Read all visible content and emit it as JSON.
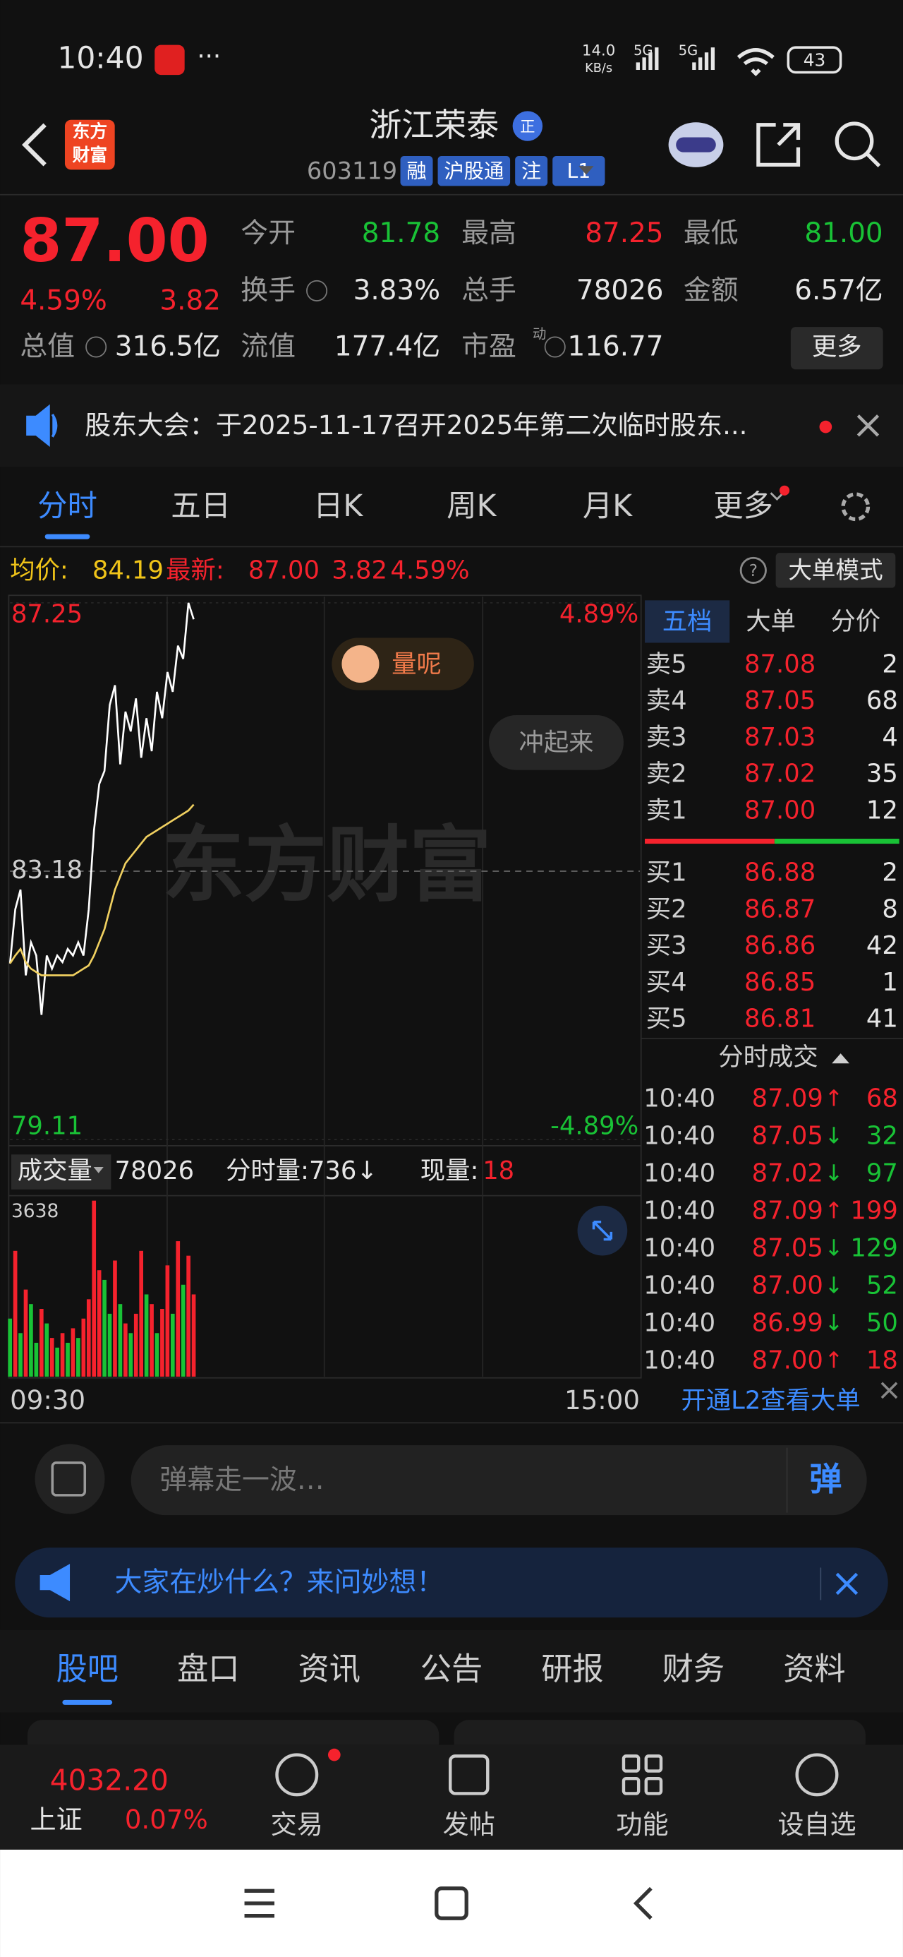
{
  "status_bar": {
    "time": "10:40",
    "speed": "14.0",
    "speed_unit": "KB/s",
    "net1": "5G",
    "net2": "5G",
    "battery": "43"
  },
  "header": {
    "logo": [
      "东方",
      "财富"
    ],
    "name": "浙江荣泰",
    "badge": "正",
    "code": "603119",
    "tags": [
      "融",
      "沪股通",
      "注",
      "L1"
    ]
  },
  "quote": {
    "price": "87.00",
    "change_pct": "4.59%",
    "change": "3.82",
    "fields": [
      {
        "label": "今开",
        "value": "81.78"
      },
      {
        "label": "最高",
        "value": "87.25"
      },
      {
        "label": "最低",
        "value": "81.00"
      },
      {
        "label": "换手",
        "value": "3.83%"
      },
      {
        "label": "总手",
        "value": "78026"
      },
      {
        "label": "金额",
        "value": "6.57亿"
      },
      {
        "label": "总值",
        "value": "316.5亿"
      },
      {
        "label": "流值",
        "value": "177.4亿"
      },
      {
        "label": "市盈",
        "sup": "动",
        "value": "116.77"
      }
    ],
    "more": "更多"
  },
  "notice": "股东大会：于2025-11-17召开2025年第二次临时股东...",
  "tabs": [
    "分时",
    "五日",
    "日K",
    "周K",
    "月K",
    "更多"
  ],
  "chart_header": {
    "avg_label": "均价:",
    "avg": "84.19",
    "latest_label": "最新:",
    "latest": "87.00",
    "change": "3.82",
    "pct": "4.59%",
    "mode": "大单模式"
  },
  "overlays": {
    "watermark": "东方财富",
    "bubble": "量呢",
    "cheer": "冲起来"
  },
  "intraday": {
    "type": "line",
    "xlim": [
      0,
      240
    ],
    "xticks": [
      {
        "value": 0,
        "label": "09:30"
      },
      {
        "value": 240,
        "label": "15:00"
      }
    ],
    "ylim": [
      79.11,
      87.25
    ],
    "yticks": [
      87.25,
      83.18,
      79.11
    ],
    "y2lim": [
      -4.89,
      4.89
    ],
    "y2ticks": [
      {
        "value": 4.89,
        "label": "4.89%"
      },
      {
        "value": -4.89,
        "label": "-4.89%"
      }
    ],
    "x": [
      0,
      2,
      4,
      6,
      8,
      10,
      12,
      14,
      16,
      18,
      20,
      22,
      24,
      26,
      28,
      30,
      32,
      34,
      36,
      38,
      40,
      42,
      44,
      46,
      48,
      50,
      52,
      54,
      56,
      58,
      60,
      62,
      64,
      66,
      68,
      70
    ],
    "series": [
      {
        "color": "#ffffff",
        "values": [
          81.78,
          82.6,
          82.9,
          81.6,
          82.1,
          81.9,
          81.0,
          81.9,
          81.7,
          81.9,
          81.8,
          82.0,
          81.9,
          82.1,
          81.9,
          82.6,
          83.8,
          84.5,
          84.7,
          85.7,
          86.0,
          84.8,
          85.6,
          85.3,
          85.8,
          84.9,
          85.5,
          85.0,
          85.9,
          85.5,
          86.2,
          85.9,
          86.6,
          86.4,
          87.25,
          87.0
        ]
      },
      {
        "color": "#f0d060",
        "values": [
          81.78,
          81.9,
          82.0,
          81.8,
          81.7,
          81.65,
          81.6,
          81.6,
          81.6,
          81.6,
          81.6,
          81.6,
          81.6,
          81.65,
          81.7,
          81.75,
          81.9,
          82.1,
          82.3,
          82.6,
          82.9,
          83.1,
          83.3,
          83.4,
          83.5,
          83.6,
          83.7,
          83.75,
          83.8,
          83.85,
          83.9,
          83.95,
          84.0,
          84.05,
          84.1,
          84.19
        ]
      }
    ]
  },
  "volume": {
    "type": "bar",
    "label": "成交量",
    "total": "78026",
    "minute_vol": "分时量:736↓",
    "now_label": "现量:",
    "now": "18",
    "ylim": [
      0,
      3638
    ],
    "yticks": [
      3638
    ],
    "values": [
      1200,
      2600,
      900,
      1800,
      1500,
      700,
      1400,
      1100,
      800,
      600,
      900,
      700,
      1000,
      800,
      1200,
      1600,
      3638,
      2200,
      2000,
      1300,
      2400,
      1500,
      1100,
      900,
      1300,
      2600,
      1700,
      1500,
      900,
      1400,
      2300,
      1300,
      2800,
      1900,
      2500,
      1700
    ],
    "colors": [
      "#19c236",
      "#f5222d",
      "#19c236",
      "#f5222d",
      "#19c236",
      "#19c236",
      "#f5222d",
      "#19c236",
      "#f5222d",
      "#19c236",
      "#f5222d",
      "#19c236",
      "#f5222d",
      "#19c236",
      "#f5222d",
      "#f5222d",
      "#f5222d",
      "#f5222d",
      "#19c236",
      "#19c236",
      "#f5222d",
      "#19c236",
      "#f5222d",
      "#19c236",
      "#f5222d",
      "#f5222d",
      "#19c236",
      "#f5222d",
      "#19c236",
      "#f5222d",
      "#f5222d",
      "#19c236",
      "#f5222d",
      "#19c236",
      "#f5222d",
      "#f5222d"
    ]
  },
  "order_book": {
    "tabs": [
      "五档",
      "大单",
      "分价"
    ],
    "asks": [
      [
        "卖5",
        "87.08",
        "2"
      ],
      [
        "卖4",
        "87.05",
        "68"
      ],
      [
        "卖3",
        "87.03",
        "4"
      ],
      [
        "卖2",
        "87.02",
        "35"
      ],
      [
        "卖1",
        "87.00",
        "12"
      ]
    ],
    "bids": [
      [
        "买1",
        "86.88",
        "2"
      ],
      [
        "买2",
        "86.87",
        "8"
      ],
      [
        "买3",
        "86.86",
        "42"
      ],
      [
        "买4",
        "86.85",
        "1"
      ],
      [
        "买5",
        "86.81",
        "41"
      ]
    ],
    "trades_title": "分时成交",
    "trades": [
      [
        "10:40",
        "87.09",
        "↑",
        "68"
      ],
      [
        "10:40",
        "87.05",
        "↓",
        "32"
      ],
      [
        "10:40",
        "87.02",
        "↓",
        "97"
      ],
      [
        "10:40",
        "87.09",
        "↑",
        "199"
      ],
      [
        "10:40",
        "87.05",
        "↓",
        "129"
      ],
      [
        "10:40",
        "87.00",
        "↓",
        "52"
      ],
      [
        "10:40",
        "86.99",
        "↓",
        "50"
      ],
      [
        "10:40",
        "87.00",
        "↑",
        "18"
      ]
    ],
    "l2": "开通L2查看大单"
  },
  "danmu": {
    "placeholder": "弹幕走一波…",
    "button": "弹"
  },
  "banner": "大家在炒什么？来问妙想！",
  "bottom_tabs": [
    "股吧",
    "盘口",
    "资讯",
    "公告",
    "研报",
    "财务",
    "资料"
  ],
  "bottom_nav": {
    "index_value": "4032.20",
    "index_name": "上证",
    "index_pct": "0.07%",
    "items": [
      "交易",
      "发帖",
      "功能",
      "设自选"
    ]
  }
}
